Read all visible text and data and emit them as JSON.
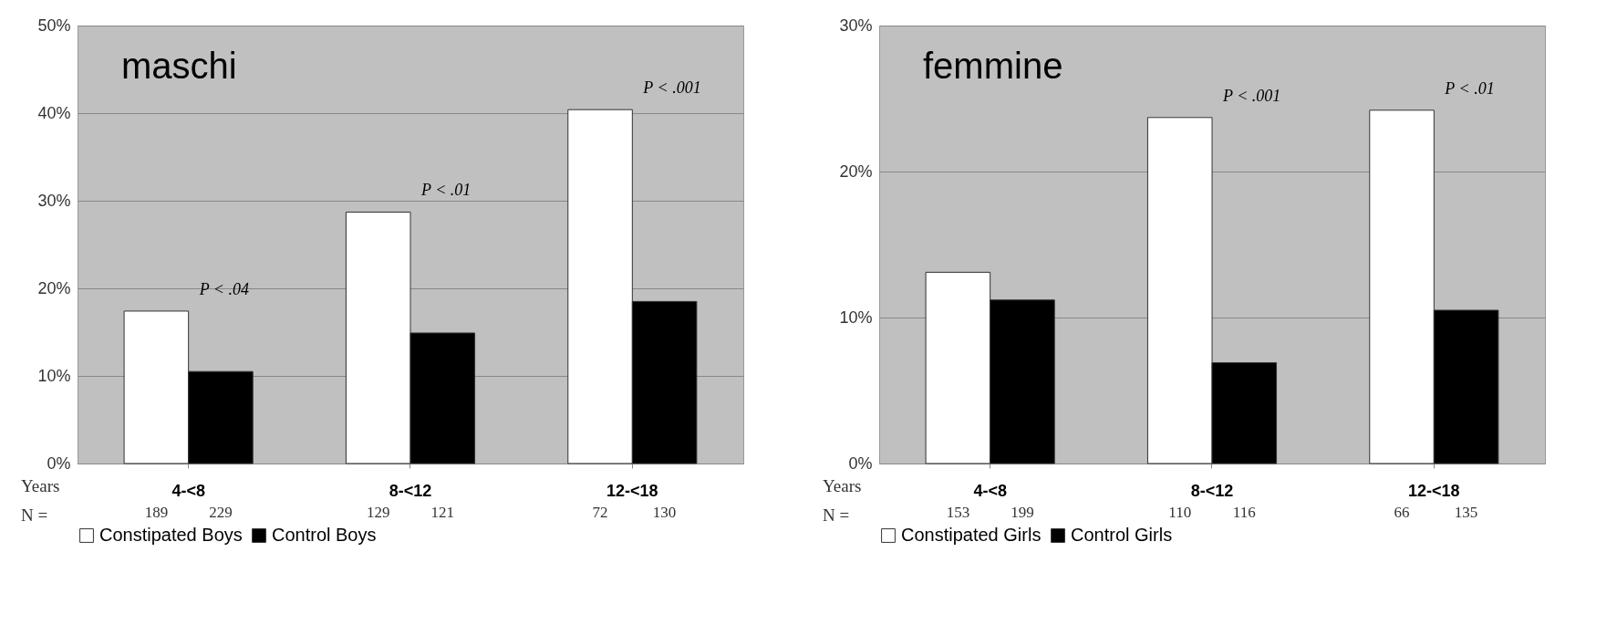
{
  "chart_data": [
    {
      "type": "bar",
      "title": "maschi",
      "categories": [
        "4-<8",
        "8-<12",
        "12-<18"
      ],
      "series": [
        {
          "name": "Constipated Boys",
          "color": "#ffffff",
          "values": [
            17.4,
            28.7,
            40.4
          ]
        },
        {
          "name": "Control Boys",
          "color": "#000000",
          "values": [
            10.5,
            14.9,
            18.5
          ]
        }
      ],
      "ylim": [
        0,
        50
      ],
      "yticks": [
        {
          "value": 0,
          "label": "0%"
        },
        {
          "value": 10,
          "label": "10%"
        },
        {
          "value": 20,
          "label": "20%"
        },
        {
          "value": 30,
          "label": "30%"
        },
        {
          "value": 40,
          "label": "40%"
        },
        {
          "value": 50,
          "label": "50%"
        }
      ],
      "grid": "y",
      "legend": "bottom",
      "annotations": [
        "189",
        "229",
        "129",
        "121",
        "72",
        "130",
        "Years",
        "N =",
        "P < .04",
        "P < .01",
        "P < .001"
      ]
    },
    {
      "type": "bar",
      "title": "femmine",
      "categories": [
        "4-<8",
        "8-<12",
        "12-<18"
      ],
      "series": [
        {
          "name": "Constipated Girls",
          "color": "#ffffff",
          "values": [
            13.1,
            23.7,
            24.2
          ]
        },
        {
          "name": "Control Girls",
          "color": "#000000",
          "values": [
            11.2,
            6.9,
            10.5
          ]
        }
      ],
      "ylim": [
        0,
        30
      ],
      "yticks": [
        {
          "value": 0,
          "label": "0%"
        },
        {
          "value": 10,
          "label": "10%"
        },
        {
          "value": 20,
          "label": "20%"
        },
        {
          "value": 30,
          "label": "30%"
        }
      ],
      "grid": "y",
      "legend": "bottom",
      "annotations": [
        "153",
        "199",
        "110",
        "116",
        "66",
        "135",
        "Years",
        "N =",
        "P < .001",
        "P < .01"
      ]
    }
  ]
}
